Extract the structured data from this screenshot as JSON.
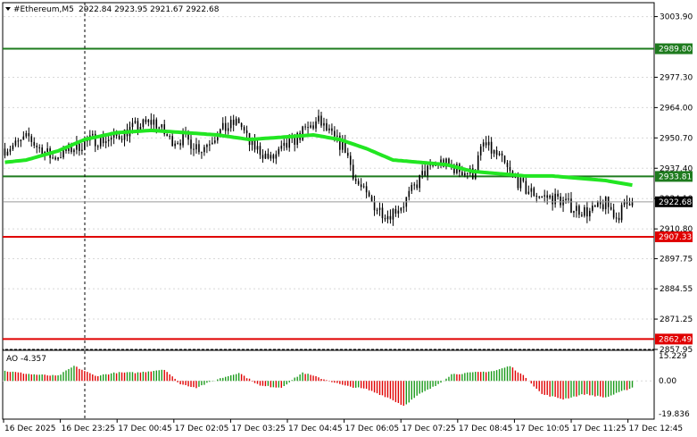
{
  "header": {
    "symbol": "#Ethereum,M5",
    "ohlc": "2922.84 2923.95 2921.67 2922.68"
  },
  "indicator": {
    "label": "AO -4.357",
    "scale_labels": [
      "15.229",
      "0.00",
      "-19.836"
    ],
    "range": [
      -19.836,
      15.229
    ]
  },
  "price_axis": {
    "range": [
      2857.95,
      3010.0
    ],
    "ticks": [
      "3003.90",
      "2977.30",
      "2964.00",
      "2950.70",
      "2937.40",
      "2924.10",
      "2910.80",
      "2897.75",
      "2884.55",
      "2871.25",
      "2857.95"
    ]
  },
  "time_axis": {
    "labels": [
      "16 Dec 2025",
      "16 Dec 23:25",
      "17 Dec 00:45",
      "17 Dec 02:05",
      "17 Dec 03:25",
      "17 Dec 04:45",
      "17 Dec 06:05",
      "17 Dec 07:25",
      "17 Dec 08:45",
      "17 Dec 10:05",
      "17 Dec 11:25",
      "17 Dec 12:45"
    ]
  },
  "levels": [
    {
      "value": 2989.8,
      "label": "2989.80",
      "color": "#1e7b1e"
    },
    {
      "value": 2933.81,
      "label": "2933.81",
      "color": "#1e7b1e"
    },
    {
      "value": 2907.33,
      "label": "2907.33",
      "color": "#e00000"
    },
    {
      "value": 2862.49,
      "label": "2862.49",
      "color": "#e00000"
    }
  ],
  "current_price": {
    "value": 2922.68,
    "label": "2922.68"
  },
  "colors": {
    "ma": "#22e622",
    "ao_up": "#1a9a1a",
    "ao_down": "#e00000",
    "candle": "#000000",
    "grid": "#d8d8d8",
    "current_tag_bg": "#000000",
    "current_tag_text": "#ffffff"
  },
  "chart_data": {
    "type": "candlestick",
    "title": "#Ethereum,M5",
    "xlabel": "",
    "ylabel": "",
    "ylim": [
      2857.95,
      3010.0
    ],
    "grid": true,
    "close_anchors": [
      [
        0,
        2946
      ],
      [
        5,
        2948
      ],
      [
        9,
        2951
      ],
      [
        12,
        2947
      ],
      [
        18,
        2942
      ],
      [
        25,
        2946
      ],
      [
        33,
        2950
      ],
      [
        40,
        2950
      ],
      [
        48,
        2955
      ],
      [
        56,
        2958
      ],
      [
        62,
        2950
      ],
      [
        68,
        2950
      ],
      [
        74,
        2946
      ],
      [
        80,
        2953
      ],
      [
        88,
        2958
      ],
      [
        92,
        2948
      ],
      [
        96,
        2945
      ],
      [
        100,
        2941
      ],
      [
        106,
        2947
      ],
      [
        112,
        2953
      ],
      [
        118,
        2958
      ],
      [
        124,
        2950
      ],
      [
        128,
        2946
      ],
      [
        132,
        2932
      ],
      [
        136,
        2925
      ],
      [
        140,
        2920
      ],
      [
        144,
        2917
      ],
      [
        150,
        2922
      ],
      [
        158,
        2936
      ],
      [
        164,
        2940
      ],
      [
        170,
        2937
      ],
      [
        176,
        2935
      ],
      [
        180,
        2948
      ],
      [
        186,
        2942
      ],
      [
        190,
        2935
      ],
      [
        196,
        2928
      ],
      [
        202,
        2925
      ],
      [
        208,
        2924
      ],
      [
        214,
        2920
      ],
      [
        220,
        2918
      ],
      [
        226,
        2922
      ],
      [
        230,
        2916
      ],
      [
        236,
        2925
      ]
    ],
    "moving_average": [
      [
        0,
        2940
      ],
      [
        8,
        2941
      ],
      [
        20,
        2945
      ],
      [
        30,
        2950
      ],
      [
        42,
        2953
      ],
      [
        55,
        2954
      ],
      [
        68,
        2953
      ],
      [
        80,
        2952
      ],
      [
        92,
        2950
      ],
      [
        104,
        2951
      ],
      [
        116,
        2952
      ],
      [
        126,
        2950
      ],
      [
        136,
        2946
      ],
      [
        146,
        2941
      ],
      [
        156,
        2940
      ],
      [
        166,
        2939
      ],
      [
        176,
        2936
      ],
      [
        186,
        2935
      ],
      [
        196,
        2934
      ],
      [
        206,
        2934
      ],
      [
        216,
        2933
      ],
      [
        226,
        2932
      ],
      [
        236,
        2930
      ]
    ],
    "ao_anchors": [
      [
        0,
        6
      ],
      [
        10,
        4
      ],
      [
        20,
        3
      ],
      [
        26,
        9
      ],
      [
        34,
        3
      ],
      [
        42,
        5
      ],
      [
        50,
        5
      ],
      [
        60,
        7
      ],
      [
        66,
        -2
      ],
      [
        72,
        -4
      ],
      [
        80,
        1
      ],
      [
        88,
        5
      ],
      [
        96,
        -3
      ],
      [
        104,
        -4
      ],
      [
        112,
        5
      ],
      [
        120,
        1
      ],
      [
        128,
        -3
      ],
      [
        136,
        -5
      ],
      [
        144,
        -10
      ],
      [
        150,
        -15
      ],
      [
        156,
        -8
      ],
      [
        162,
        -3
      ],
      [
        168,
        4
      ],
      [
        176,
        5
      ],
      [
        184,
        6
      ],
      [
        190,
        9
      ],
      [
        196,
        2
      ],
      [
        202,
        -8
      ],
      [
        210,
        -11
      ],
      [
        218,
        -8
      ],
      [
        226,
        -10
      ],
      [
        236,
        -4
      ]
    ]
  }
}
